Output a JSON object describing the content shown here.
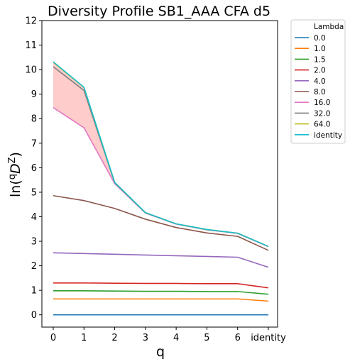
{
  "chart_data": {
    "type": "line",
    "title": "Diversity Profile SB1_AAA CFA d5",
    "xlabel": "q",
    "ylabel": "ln(qDZ)",
    "categories": [
      "0",
      "1",
      "2",
      "3",
      "4",
      "5",
      "6",
      "identity"
    ],
    "ylim": [
      -0.5,
      12
    ],
    "yticks": [
      0,
      1,
      2,
      3,
      4,
      5,
      6,
      7,
      8,
      9,
      10,
      11,
      12
    ],
    "grid": false,
    "legend": {
      "title": "Lambda",
      "placement": "outside-top-right"
    },
    "series": [
      {
        "name": "0.0",
        "color": "#1f77b4",
        "values": [
          0,
          0,
          0,
          0,
          0,
          0,
          0,
          0
        ]
      },
      {
        "name": "1.0",
        "color": "#ff7f0e",
        "values": [
          0.65,
          0.65,
          0.65,
          0.65,
          0.65,
          0.65,
          0.65,
          0.56
        ]
      },
      {
        "name": "1.5",
        "color": "#2ca02c",
        "values": [
          0.98,
          0.98,
          0.97,
          0.96,
          0.96,
          0.95,
          0.95,
          0.84
        ]
      },
      {
        "name": "2.0",
        "color": "#d62728",
        "values": [
          1.3,
          1.3,
          1.29,
          1.28,
          1.28,
          1.27,
          1.27,
          1.1
        ]
      },
      {
        "name": "4.0",
        "color": "#9467bd",
        "values": [
          2.53,
          2.5,
          2.47,
          2.44,
          2.41,
          2.38,
          2.35,
          1.94
        ]
      },
      {
        "name": "8.0",
        "color": "#8c564b",
        "values": [
          4.86,
          4.66,
          4.34,
          3.9,
          3.56,
          3.34,
          3.2,
          2.63
        ]
      },
      {
        "name": "16.0",
        "color": "#e377c2",
        "values": [
          8.45,
          7.63,
          5.35,
          4.15,
          3.7,
          3.47,
          3.32,
          2.78
        ]
      },
      {
        "name": "32.0",
        "color": "#7f7f7f",
        "values": [
          10.12,
          9.15,
          5.38,
          4.16,
          3.71,
          3.47,
          3.33,
          2.79
        ]
      },
      {
        "name": "64.0",
        "color": "#bcbd22",
        "values": [
          10.3,
          9.27,
          5.4,
          4.17,
          3.71,
          3.48,
          3.33,
          2.79
        ]
      },
      {
        "name": "identity",
        "color": "#17becf",
        "values": [
          10.32,
          9.28,
          5.4,
          4.17,
          3.71,
          3.48,
          3.33,
          2.79
        ]
      }
    ],
    "fill_between": {
      "color": "#ff9999",
      "opacity": 0.5,
      "lower": "16.0",
      "upper": "identity"
    }
  }
}
